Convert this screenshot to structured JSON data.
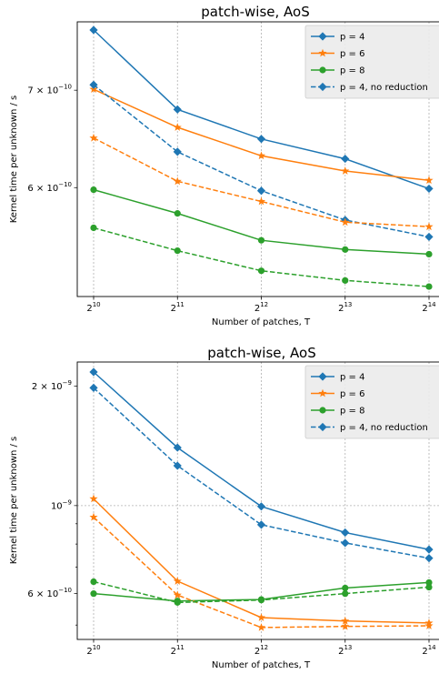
{
  "chart_data": [
    {
      "type": "line",
      "title": "patch-wise, AoS",
      "xlabel": "Number of patches, T",
      "ylabel": "Kernel time per unknown / s",
      "x": [
        1024,
        2048,
        4096,
        8192,
        16384
      ],
      "x_tick_labels": [
        {
          "base": "2",
          "exp": "10"
        },
        {
          "base": "2",
          "exp": "11"
        },
        {
          "base": "2",
          "exp": "12"
        },
        {
          "base": "2",
          "exp": "13"
        },
        {
          "base": "2",
          "exp": "14"
        }
      ],
      "xscale": "log2",
      "yscale": "log",
      "ylim": [
        5.05e-10,
        7.8e-10
      ],
      "y_ticks": [
        {
          "value": 6e-10,
          "mant": "6 × 10",
          "exp": "−10"
        },
        {
          "value": 7e-10,
          "mant": "7 × 10",
          "exp": "−10"
        }
      ],
      "grid": "x-only",
      "legend_position": "top-right",
      "series": [
        {
          "name": "p = 4",
          "color": "#1f77b4",
          "marker": "diamond",
          "style": "solid",
          "values": [
            7.7e-10,
            6.79e-10,
            6.48e-10,
            6.28e-10,
            5.99e-10
          ]
        },
        {
          "name": "p = 6",
          "color": "#ff7f0e",
          "marker": "star",
          "style": "solid",
          "values": [
            7.01e-10,
            6.6e-10,
            6.31e-10,
            6.16e-10,
            6.07e-10
          ]
        },
        {
          "name": "p = 8",
          "color": "#2ca02c",
          "marker": "circle",
          "style": "solid",
          "values": [
            5.98e-10,
            5.76e-10,
            5.52e-10,
            5.44e-10,
            5.4e-10
          ]
        },
        {
          "name": "p = 4, no reduction",
          "color": "#1f77b4",
          "marker": "diamond",
          "style": "dashed",
          "values": [
            7.06e-10,
            6.35e-10,
            5.97e-10,
            5.7e-10,
            5.55e-10
          ]
        },
        {
          "name": "",
          "color": "#ff7f0e",
          "marker": "star",
          "style": "dashed",
          "values": [
            6.49e-10,
            6.06e-10,
            5.87e-10,
            5.68e-10,
            5.64e-10
          ]
        },
        {
          "name": "",
          "color": "#2ca02c",
          "marker": "circle",
          "style": "dashed",
          "values": [
            5.63e-10,
            5.43e-10,
            5.26e-10,
            5.18e-10,
            5.13e-10
          ]
        }
      ]
    },
    {
      "type": "line",
      "title": "patch-wise, AoS",
      "xlabel": "Number of patches, T",
      "ylabel": "Kernel time per unknown / s",
      "x": [
        1024,
        2048,
        4096,
        8192,
        16384
      ],
      "x_tick_labels": [
        {
          "base": "2",
          "exp": "10"
        },
        {
          "base": "2",
          "exp": "11"
        },
        {
          "base": "2",
          "exp": "12"
        },
        {
          "base": "2",
          "exp": "13"
        },
        {
          "base": "2",
          "exp": "14"
        }
      ],
      "xscale": "log2",
      "yscale": "log",
      "ylim": [
        4.6e-10,
        2.3e-09
      ],
      "y_ticks": [
        {
          "value": 6e-10,
          "mant": "6 × 10",
          "exp": "−10"
        },
        {
          "value": 1e-09,
          "mant": "10",
          "exp": "−9"
        },
        {
          "value": 2e-09,
          "mant": "2 × 10",
          "exp": "−9"
        }
      ],
      "grid": "x and major y",
      "legend_position": "top-right",
      "series": [
        {
          "name": "p = 4",
          "color": "#1f77b4",
          "marker": "diamond",
          "style": "solid",
          "values": [
            2.17e-09,
            1.4e-09,
            9.95e-10,
            8.55e-10,
            7.75e-10
          ]
        },
        {
          "name": "p = 6",
          "color": "#ff7f0e",
          "marker": "star",
          "style": "solid",
          "values": [
            1.04e-09,
            6.45e-10,
            5.22e-10,
            5.12e-10,
            5.06e-10
          ]
        },
        {
          "name": "p = 8",
          "color": "#2ca02c",
          "marker": "circle",
          "style": "solid",
          "values": [
            6e-10,
            5.75e-10,
            5.8e-10,
            6.2e-10,
            6.4e-10
          ]
        },
        {
          "name": "p = 4, no reduction",
          "color": "#1f77b4",
          "marker": "diamond",
          "style": "dashed",
          "values": [
            1.98e-09,
            1.26e-09,
            8.95e-10,
            8.05e-10,
            7.37e-10
          ]
        },
        {
          "name": "",
          "color": "#ff7f0e",
          "marker": "star",
          "style": "dashed",
          "values": [
            9.35e-10,
            5.95e-10,
            4.93e-10,
            4.96e-10,
            4.98e-10
          ]
        },
        {
          "name": "",
          "color": "#2ca02c",
          "marker": "circle",
          "style": "dashed",
          "values": [
            6.43e-10,
            5.7e-10,
            5.78e-10,
            6e-10,
            6.23e-10
          ]
        }
      ]
    }
  ]
}
